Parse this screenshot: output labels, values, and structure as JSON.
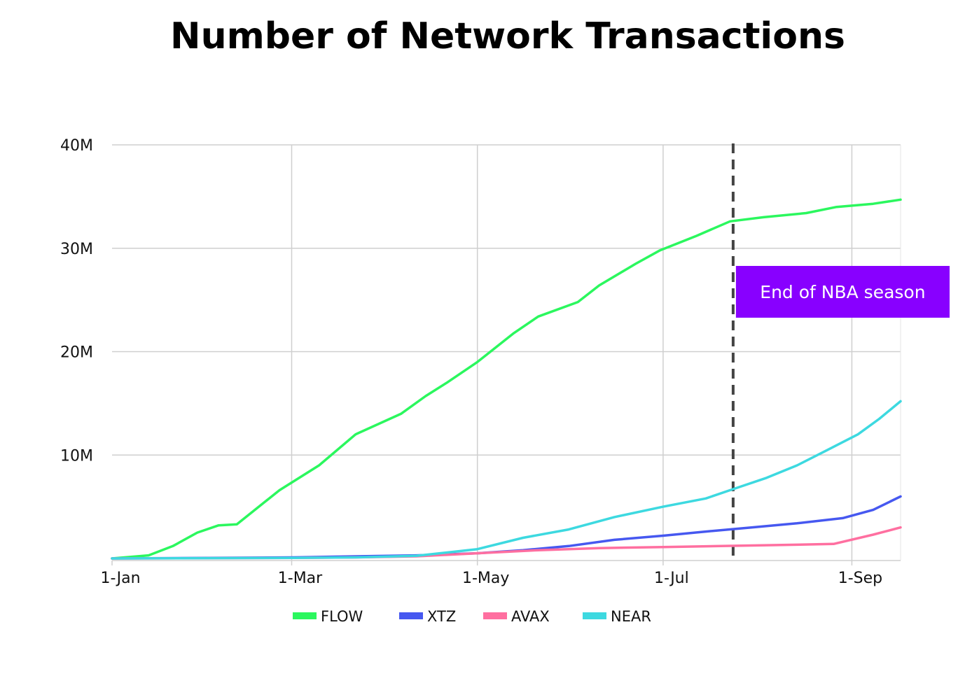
{
  "chart_data": {
    "type": "line",
    "title": "Number of Network Transactions",
    "xlabel": "",
    "ylabel": "",
    "x_ticks": [
      {
        "label": "1-Jan",
        "day": 0
      },
      {
        "label": "1-Mar",
        "day": 59
      },
      {
        "label": "1-May",
        "day": 120
      },
      {
        "label": "1-Jul",
        "day": 181
      },
      {
        "label": "1-Sep",
        "day": 243
      }
    ],
    "y_ticks": [
      "",
      "10M",
      "20M",
      "30M",
      "40M"
    ],
    "ylim": [
      0,
      40000000
    ],
    "xlim": [
      0,
      259
    ],
    "grid": true,
    "legend_position": "bottom",
    "series": [
      {
        "name": "FLOW",
        "color": "#2bf75e",
        "points": [
          [
            0,
            0
          ],
          [
            12,
            300000
          ],
          [
            20,
            1200000
          ],
          [
            28,
            2500000
          ],
          [
            35,
            3200000
          ],
          [
            41,
            3300000
          ],
          [
            55,
            6600000
          ],
          [
            68,
            9000000
          ],
          [
            80,
            12000000
          ],
          [
            95,
            14000000
          ],
          [
            103,
            15700000
          ],
          [
            110,
            17000000
          ],
          [
            120,
            19000000
          ],
          [
            132,
            21800000
          ],
          [
            140,
            23400000
          ],
          [
            153,
            24800000
          ],
          [
            160,
            26400000
          ],
          [
            172,
            28500000
          ],
          [
            180,
            29800000
          ],
          [
            192,
            31200000
          ],
          [
            203,
            32600000
          ],
          [
            214,
            33000000
          ],
          [
            228,
            33400000
          ],
          [
            238,
            34000000
          ],
          [
            250,
            34300000
          ],
          [
            259,
            34700000
          ]
        ]
      },
      {
        "name": "XTZ",
        "color": "#4658f0",
        "points": [
          [
            0,
            0
          ],
          [
            60,
            100000
          ],
          [
            80,
            200000
          ],
          [
            100,
            300000
          ],
          [
            120,
            500000
          ],
          [
            135,
            800000
          ],
          [
            150,
            1200000
          ],
          [
            165,
            1800000
          ],
          [
            181,
            2200000
          ],
          [
            195,
            2600000
          ],
          [
            210,
            3000000
          ],
          [
            225,
            3400000
          ],
          [
            240,
            3900000
          ],
          [
            250,
            4700000
          ],
          [
            259,
            6000000
          ]
        ]
      },
      {
        "name": "AVAX",
        "color": "#ff6fa0",
        "points": [
          [
            0,
            0
          ],
          [
            60,
            50000
          ],
          [
            80,
            100000
          ],
          [
            100,
            200000
          ],
          [
            120,
            500000
          ],
          [
            140,
            800000
          ],
          [
            160,
            1000000
          ],
          [
            181,
            1100000
          ],
          [
            200,
            1200000
          ],
          [
            220,
            1300000
          ],
          [
            237,
            1400000
          ],
          [
            250,
            2300000
          ],
          [
            259,
            3000000
          ]
        ]
      },
      {
        "name": "NEAR",
        "color": "#3dd9e0",
        "points": [
          [
            0,
            0
          ],
          [
            60,
            50000
          ],
          [
            80,
            100000
          ],
          [
            100,
            250000
          ],
          [
            120,
            900000
          ],
          [
            135,
            2000000
          ],
          [
            150,
            2800000
          ],
          [
            165,
            4000000
          ],
          [
            181,
            5000000
          ],
          [
            195,
            5800000
          ],
          [
            205,
            6800000
          ],
          [
            215,
            7800000
          ],
          [
            225,
            9000000
          ],
          [
            235,
            10500000
          ],
          [
            245,
            12000000
          ],
          [
            252,
            13500000
          ],
          [
            259,
            15200000
          ]
        ]
      }
    ],
    "annotation": {
      "label": "End of NBA season",
      "day": 204,
      "box_color": "#8800ff",
      "line_color": "#444444"
    }
  }
}
